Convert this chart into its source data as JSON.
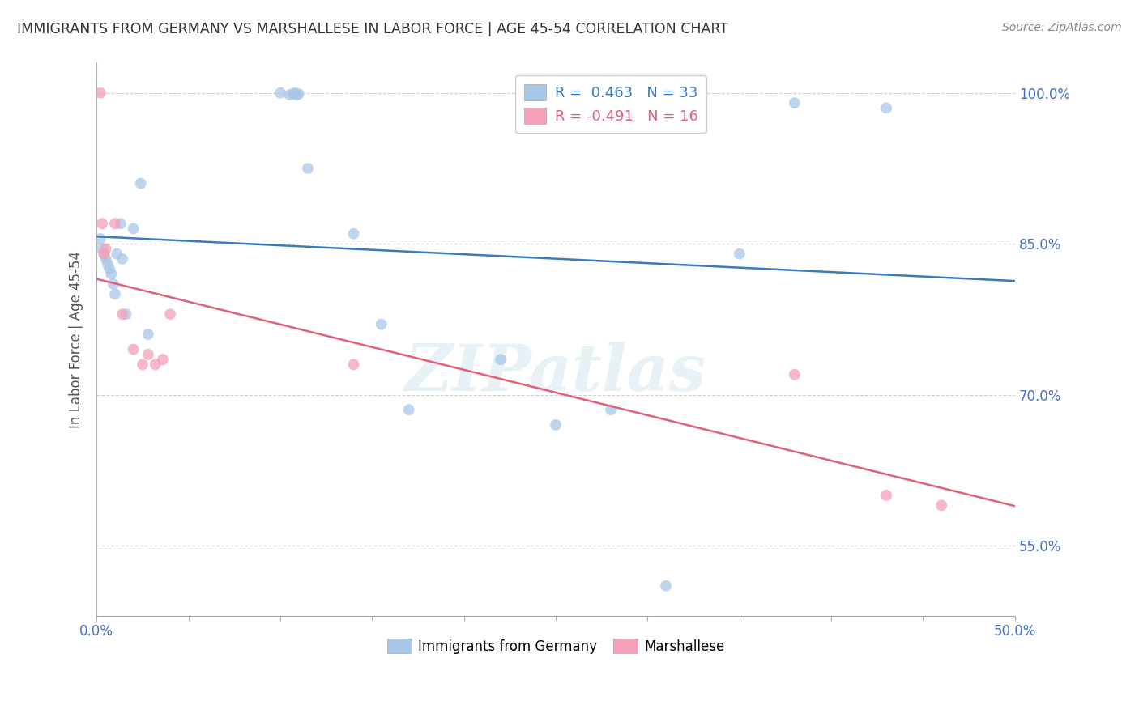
{
  "title": "IMMIGRANTS FROM GERMANY VS MARSHALLESE IN LABOR FORCE | AGE 45-54 CORRELATION CHART",
  "source": "Source: ZipAtlas.com",
  "ylabel": "In Labor Force | Age 45-54",
  "xmin": 0.0,
  "xmax": 0.5,
  "ymin": 0.48,
  "ymax": 1.03,
  "yticks_labeled": [
    0.55,
    0.7,
    0.85,
    1.0
  ],
  "ytick_labels": [
    "55.0%",
    "70.0%",
    "85.0%",
    "100.0%"
  ],
  "xtick_positions": [
    0.0,
    0.05,
    0.1,
    0.15,
    0.2,
    0.25,
    0.3,
    0.35,
    0.4,
    0.45,
    0.5
  ],
  "xtick_labels_show": [
    "0.0%",
    "",
    "",
    "",
    "",
    "",
    "",
    "",
    "",
    "",
    "50.0%"
  ],
  "blue_color": "#a8c8e8",
  "pink_color": "#f4a0b8",
  "blue_line_color": "#3a7bbf",
  "pink_line_color": "#e0607a",
  "legend_blue_label": "R =  0.463   N = 33",
  "legend_pink_label": "R = -0.491   N = 16",
  "legend_blue_series": "Immigrants from Germany",
  "legend_pink_series": "Marshallese",
  "blue_x": [
    0.002,
    0.003,
    0.004,
    0.005,
    0.006,
    0.007,
    0.008,
    0.009,
    0.01,
    0.011,
    0.013,
    0.014,
    0.016,
    0.02,
    0.024,
    0.028,
    0.1,
    0.105,
    0.107,
    0.108,
    0.109,
    0.11,
    0.115,
    0.14,
    0.155,
    0.17,
    0.22,
    0.25,
    0.28,
    0.31,
    0.35,
    0.38,
    0.43
  ],
  "blue_y": [
    0.855,
    0.845,
    0.84,
    0.835,
    0.83,
    0.825,
    0.82,
    0.81,
    0.8,
    0.84,
    0.87,
    0.835,
    0.78,
    0.865,
    0.91,
    0.76,
    1.0,
    0.998,
    0.999,
    1.0,
    0.998,
    0.999,
    0.925,
    0.86,
    0.77,
    0.685,
    0.735,
    0.67,
    0.685,
    0.51,
    0.84,
    0.99,
    0.985
  ],
  "pink_x": [
    0.002,
    0.003,
    0.004,
    0.005,
    0.01,
    0.014,
    0.02,
    0.025,
    0.028,
    0.032,
    0.036,
    0.04,
    0.14,
    0.38,
    0.43,
    0.46
  ],
  "pink_y": [
    1.0,
    0.87,
    0.84,
    0.845,
    0.87,
    0.78,
    0.745,
    0.73,
    0.74,
    0.73,
    0.735,
    0.78,
    0.73,
    0.72,
    0.6,
    0.59
  ],
  "watermark_text": "ZIPatlas",
  "bg_color": "#ffffff",
  "title_color": "#333333",
  "right_axis_color": "#4472c4",
  "ylabel_color": "#555555",
  "grid_color": "#d0d0d0",
  "grid_linestyle": "--",
  "scatter_size": 100,
  "scatter_alpha": 0.75,
  "line_width": 1.8
}
